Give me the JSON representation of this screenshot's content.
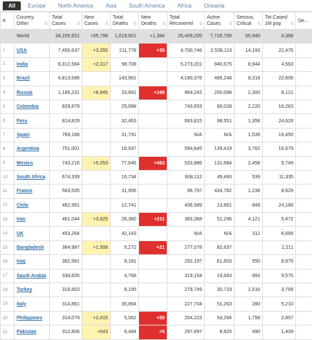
{
  "tabs": [
    "All",
    "Europe",
    "North America",
    "Asia",
    "South America",
    "Africa",
    "Oceania"
  ],
  "columns": [
    "#",
    "Country,\nOther",
    "Total\nCases",
    "New\nCases",
    "Total\nDeaths",
    "New\nDeaths",
    "Total\nRecovered",
    "Active\nCases",
    "Serious,\nCritical",
    "Tot Cases/\n1M pop",
    "De..."
  ],
  "world": [
    "",
    "World",
    "34,205,601",
    "+55,798",
    "1,019,601",
    "+1,384",
    "25,459,205",
    "7,726,795",
    "65,940",
    "4,388",
    ""
  ],
  "rows": [
    [
      "1",
      "USA",
      "7,450,637",
      "+3,355",
      "211,778",
      "+38",
      "4,700,746",
      "2,538,113",
      "14,193",
      "22,476",
      ""
    ],
    [
      "2",
      "India",
      "6,312,584",
      "+2,317",
      "98,708",
      "",
      "5,273,201",
      "940,675",
      "8,944",
      "4,563",
      ""
    ],
    [
      "3",
      "Brazil",
      "4,813,586",
      "",
      "143,962",
      "",
      "4,180,376",
      "489,248",
      "8,318",
      "22,606",
      ""
    ],
    [
      "4",
      "Russia",
      "1,185,231",
      "+8,945",
      "20,891",
      "+169",
      "964,242",
      "200,098",
      "2,300",
      "8,121",
      ""
    ],
    [
      "5",
      "Colombia",
      "829,679",
      "",
      "25,998",
      "",
      "743,653",
      "60,028",
      "2,220",
      "16,263",
      ""
    ],
    [
      "6",
      "Peru",
      "814,829",
      "",
      "32,463",
      "",
      "683,815",
      "98,551",
      "1,358",
      "24,628",
      ""
    ],
    [
      "7",
      "Spain",
      "769,188",
      "",
      "31,791",
      "",
      "N/A",
      "N/A",
      "1,539",
      "16,450",
      ""
    ],
    [
      "8",
      "Argentina",
      "751,001",
      "",
      "16,937",
      "",
      "594,645",
      "139,419",
      "3,762",
      "16,579",
      ""
    ],
    [
      "9",
      "Mexico",
      "743,216",
      "+5,053",
      "77,646",
      "+483",
      "533,886",
      "131,684",
      "2,458",
      "5,749",
      ""
    ],
    [
      "10",
      "South Africa",
      "674,339",
      "",
      "16,734",
      "",
      "608,112",
      "49,493",
      "539",
      "11,335",
      ""
    ],
    [
      "11",
      "France",
      "563,535",
      "",
      "31,956",
      "",
      "96,797",
      "434,782",
      "1,238",
      "8,629",
      ""
    ],
    [
      "12",
      "Chile",
      "462,991",
      "",
      "12,741",
      "",
      "436,589",
      "13,661",
      "849",
      "24,168",
      ""
    ],
    [
      "13",
      "Iran",
      "461,044",
      "+3,825",
      "26,380",
      "+211",
      "383,368",
      "51,296",
      "4,121",
      "5,472",
      ""
    ],
    [
      "14",
      "UK",
      "453,264",
      "",
      "42,143",
      "",
      "N/A",
      "N/A",
      "312",
      "6,668",
      ""
    ],
    [
      "15",
      "Bangladesh",
      "364,987",
      "+1,508",
      "5,272",
      "+21",
      "277,078",
      "82,637",
      "",
      "2,211",
      ""
    ],
    [
      "16",
      "Iraq",
      "362,981",
      "",
      "9,181",
      "",
      "292,197",
      "61,603",
      "550",
      "8,975",
      ""
    ],
    [
      "17",
      "Saudi Arabia",
      "334,605",
      "",
      "4,768",
      "",
      "319,154",
      "10,683",
      "993",
      "9,575",
      ""
    ],
    [
      "18",
      "Turkey",
      "318,663",
      "",
      "8,195",
      "",
      "279,749",
      "30,719",
      "1,516",
      "3,768",
      ""
    ],
    [
      "19",
      "Italy",
      "314,861",
      "",
      "35,894",
      "",
      "227,704",
      "51,263",
      "280",
      "5,210",
      ""
    ],
    [
      "20",
      "Philippines",
      "314,079",
      "+2,415",
      "5,562",
      "+59",
      "254,223",
      "54,294",
      "1,758",
      "2,857",
      ""
    ],
    [
      "21",
      "Pakistan",
      "312,806",
      "+543",
      "6,484",
      "+5",
      "297,497",
      "8,825",
      "490",
      "1,409",
      ""
    ]
  ],
  "colors": {
    "new_cases_bg": "#fff3b0",
    "new_deaths_bg": "#e0302d",
    "link": "#2f6ea4",
    "tab_active_bg": "#333333"
  }
}
